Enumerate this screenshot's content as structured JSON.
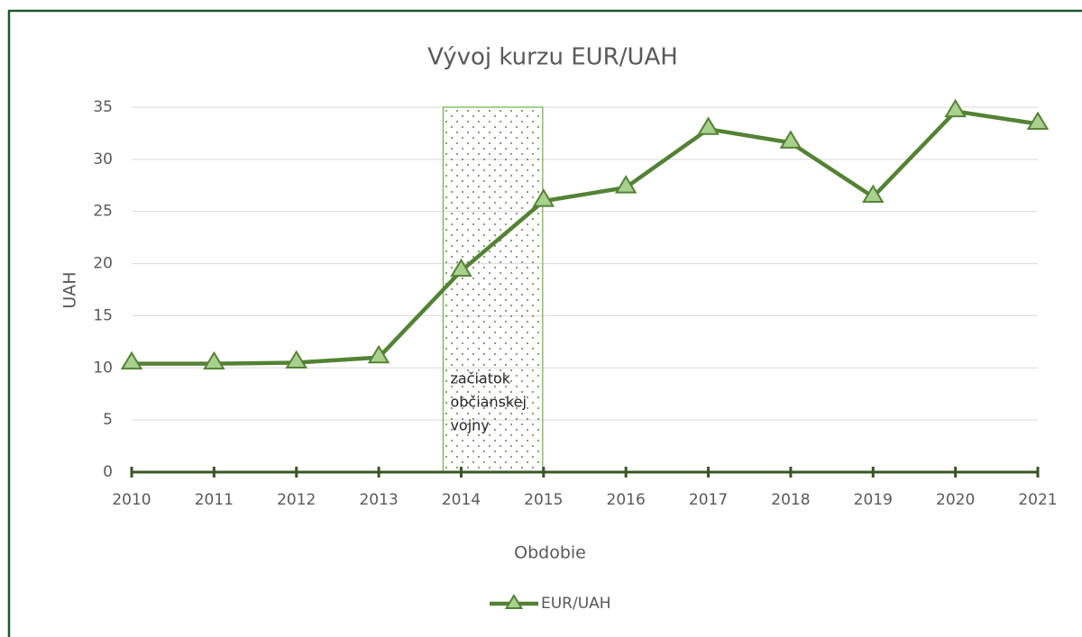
{
  "chart_data": {
    "type": "line",
    "title": "Vývoj kurzu EUR/UAH",
    "x_label": "Obdobie",
    "y_label": "UAH",
    "categories": [
      "2010",
      "2011",
      "2012",
      "2013",
      "2014",
      "2015",
      "2016",
      "2017",
      "2018",
      "2019",
      "2020",
      "2021"
    ],
    "series": [
      {
        "name": "EUR/UAH",
        "color": "#548235",
        "values": [
          10.4,
          10.4,
          10.5,
          11.0,
          19.3,
          26.0,
          27.3,
          32.9,
          31.6,
          26.4,
          34.6,
          33.4
        ]
      }
    ],
    "ylim": [
      0,
      35
    ],
    "yticks": [
      0,
      5,
      10,
      15,
      20,
      25,
      30,
      35
    ],
    "grid": true,
    "annotation": {
      "lines": [
        "začiatok",
        "občianskej",
        "vojny"
      ]
    },
    "legend": "bottom"
  }
}
